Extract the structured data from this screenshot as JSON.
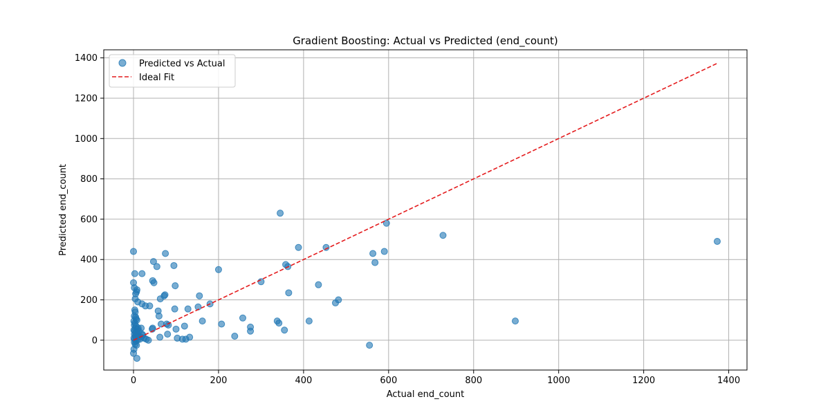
{
  "chart_data": {
    "type": "scatter",
    "title": "Gradient Boosting: Actual vs Predicted (end_count)",
    "xlabel": "Actual end_count",
    "ylabel": "Predicted end_count",
    "xlim": [
      -70,
      1443
    ],
    "ylim": [
      -148,
      1440
    ],
    "xticks": [
      0,
      200,
      400,
      600,
      800,
      1000,
      1200,
      1400
    ],
    "yticks": [
      0,
      200,
      400,
      600,
      800,
      1000,
      1200,
      1400
    ],
    "grid": true,
    "legend_position": "top-left",
    "colors": {
      "points": "#1f77b4",
      "ideal_line": "#e41a1c",
      "grid": "#b0b0b0"
    },
    "series": [
      {
        "name": "Predicted vs Actual",
        "kind": "scatter",
        "points": [
          [
            0,
            440
          ],
          [
            0,
            285
          ],
          [
            2,
            260
          ],
          [
            3,
            330
          ],
          [
            4,
            205
          ],
          [
            5,
            230
          ],
          [
            7,
            240
          ],
          [
            8,
            250
          ],
          [
            3,
            150
          ],
          [
            4,
            140
          ],
          [
            2,
            120
          ],
          [
            5,
            115
          ],
          [
            6,
            105
          ],
          [
            8,
            100
          ],
          [
            1,
            95
          ],
          [
            3,
            85
          ],
          [
            2,
            75
          ],
          [
            6,
            70
          ],
          [
            4,
            60
          ],
          [
            9,
            55
          ],
          [
            1,
            50
          ],
          [
            3,
            45
          ],
          [
            7,
            40
          ],
          [
            5,
            35
          ],
          [
            2,
            30
          ],
          [
            8,
            25
          ],
          [
            4,
            20
          ],
          [
            6,
            15
          ],
          [
            1,
            10
          ],
          [
            3,
            5
          ],
          [
            9,
            0
          ],
          [
            5,
            -5
          ],
          [
            2,
            -10
          ],
          [
            4,
            -20
          ],
          [
            7,
            -25
          ],
          [
            1,
            -45
          ],
          [
            0,
            -65
          ],
          [
            8,
            -90
          ],
          [
            10,
            30
          ],
          [
            12,
            20
          ],
          [
            11,
            60
          ],
          [
            13,
            45
          ],
          [
            10,
            190
          ],
          [
            15,
            5
          ],
          [
            18,
            15
          ],
          [
            20,
            30
          ],
          [
            22,
            25
          ],
          [
            25,
            10
          ],
          [
            30,
            5
          ],
          [
            35,
            0
          ],
          [
            20,
            330
          ],
          [
            20,
            180
          ],
          [
            28,
            170
          ],
          [
            38,
            170
          ],
          [
            18,
            60
          ],
          [
            44,
            55
          ],
          [
            45,
            60
          ],
          [
            45,
            295
          ],
          [
            48,
            285
          ],
          [
            47,
            390
          ],
          [
            55,
            365
          ],
          [
            58,
            145
          ],
          [
            60,
            120
          ],
          [
            62,
            15
          ],
          [
            63,
            205
          ],
          [
            65,
            80
          ],
          [
            72,
            220
          ],
          [
            74,
            225
          ],
          [
            75,
            430
          ],
          [
            78,
            80
          ],
          [
            80,
            30
          ],
          [
            82,
            75
          ],
          [
            95,
            370
          ],
          [
            97,
            155
          ],
          [
            98,
            270
          ],
          [
            100,
            55
          ],
          [
            103,
            10
          ],
          [
            115,
            5
          ],
          [
            120,
            70
          ],
          [
            123,
            5
          ],
          [
            128,
            155
          ],
          [
            132,
            15
          ],
          [
            152,
            165
          ],
          [
            155,
            220
          ],
          [
            162,
            95
          ],
          [
            180,
            180
          ],
          [
            200,
            350
          ],
          [
            207,
            80
          ],
          [
            238,
            20
          ],
          [
            257,
            110
          ],
          [
            275,
            45
          ],
          [
            275,
            65
          ],
          [
            300,
            290
          ],
          [
            338,
            95
          ],
          [
            342,
            85
          ],
          [
            345,
            630
          ],
          [
            355,
            50
          ],
          [
            358,
            375
          ],
          [
            363,
            365
          ],
          [
            365,
            235
          ],
          [
            388,
            460
          ],
          [
            413,
            95
          ],
          [
            435,
            275
          ],
          [
            453,
            460
          ],
          [
            475,
            185
          ],
          [
            482,
            200
          ],
          [
            555,
            -25
          ],
          [
            563,
            430
          ],
          [
            568,
            385
          ],
          [
            590,
            440
          ],
          [
            595,
            580
          ],
          [
            728,
            520
          ],
          [
            898,
            95
          ],
          [
            1373,
            490
          ]
        ]
      },
      {
        "name": "Ideal Fit",
        "kind": "line",
        "style": "dashed",
        "points": [
          [
            0,
            0
          ],
          [
            1373,
            1373
          ]
        ]
      }
    ]
  }
}
